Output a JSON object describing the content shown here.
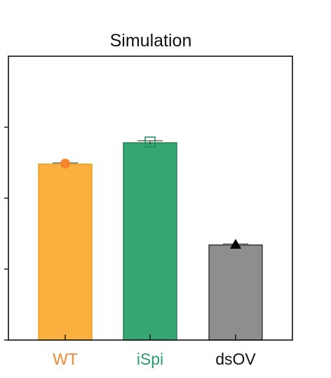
{
  "chart_data": {
    "type": "bar",
    "title": "Simulation",
    "xlabel": "",
    "ylabel": "",
    "categories": [
      "WT",
      "iSpi",
      "dsOV"
    ],
    "values": [
      0.62,
      0.695,
      0.335
    ],
    "errors": [
      0.004,
      0.007,
      0.004
    ],
    "ylim": [
      0,
      1
    ],
    "yticks": [
      0.25,
      0.5,
      0.75
    ],
    "grid": false,
    "legend": "none",
    "colors": {
      "bars": [
        "#FBB040",
        "#35A672",
        "#8E8E8E"
      ],
      "bar_edges": [
        "#E0A020",
        "#1F7A50",
        "#333333"
      ],
      "tick_labels": [
        "#F08A30",
        "#2A9D68",
        "#111111"
      ],
      "markers": [
        "#F5872A",
        "#1F8A5A",
        "#000000"
      ]
    },
    "markers": [
      "circle",
      "open-square",
      "triangle"
    ]
  }
}
